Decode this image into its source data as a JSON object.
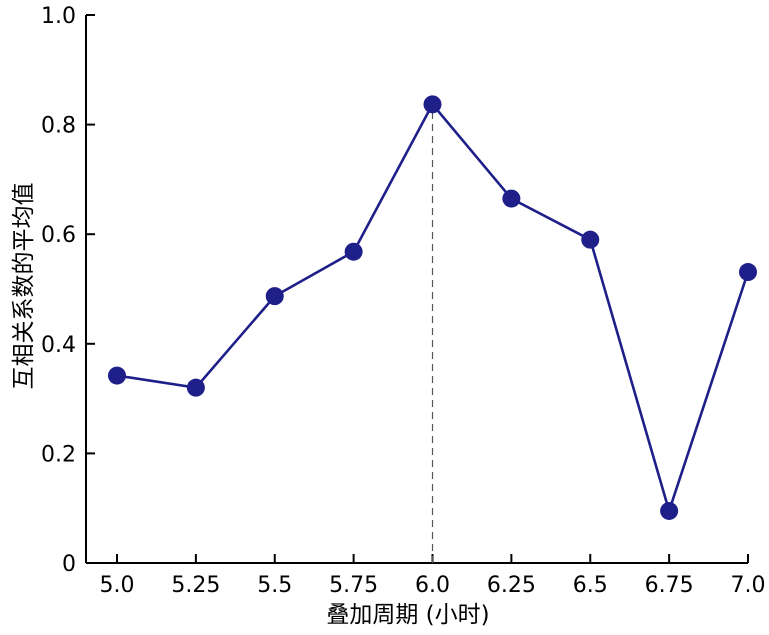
{
  "chart_data": {
    "type": "line",
    "xlabel": "叠加周期 (小时)",
    "ylabel": "互相关系数的平均值",
    "x_ticks": [
      "5.0",
      "5.25",
      "5.5",
      "5.75",
      "6.0",
      "6.25",
      "6.5",
      "6.75",
      "7.0"
    ],
    "y_ticks": [
      "0",
      "0.2",
      "0.4",
      "0.6",
      "0.8",
      "1.0"
    ],
    "xlim": [
      5.0,
      7.0
    ],
    "ylim": [
      0,
      1.0
    ],
    "series": [
      {
        "x": [
          5.0,
          5.25,
          5.5,
          5.75,
          6.0,
          6.25,
          6.5,
          6.75,
          7.0
        ],
        "y": [
          0.342,
          0.32,
          0.487,
          0.568,
          0.837,
          0.665,
          0.59,
          0.095,
          0.531
        ]
      }
    ],
    "reference_line": {
      "x": 6.0,
      "style": "dashed"
    },
    "grid": false,
    "colors": {
      "series": "#1f1f8a",
      "reference": "#555555"
    }
  }
}
